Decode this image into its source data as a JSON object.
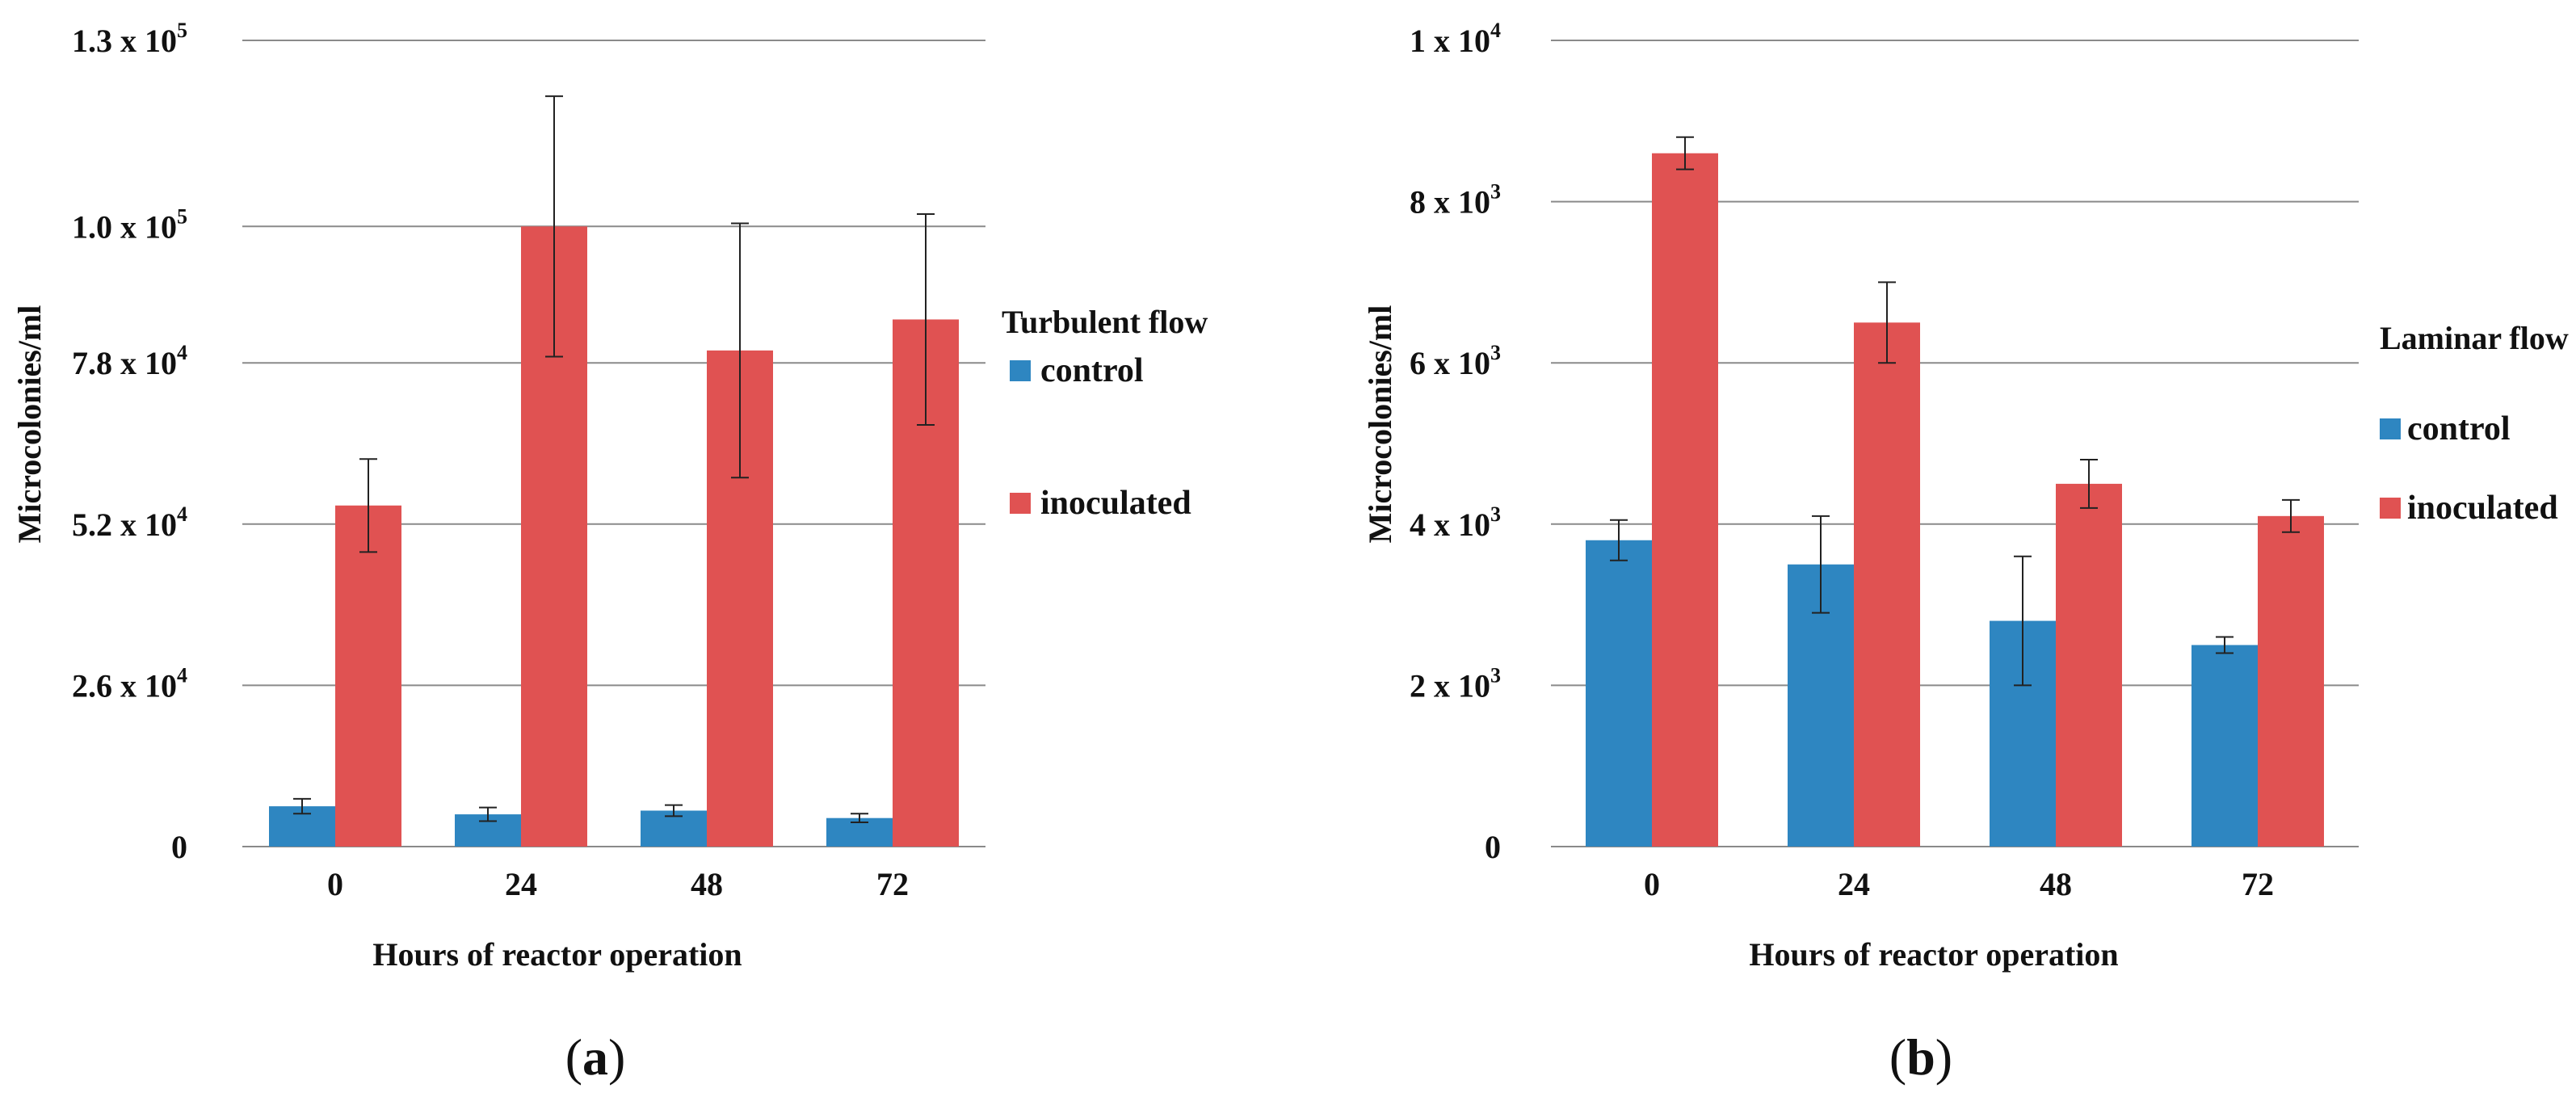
{
  "figure": {
    "panels": [
      {
        "id": "a",
        "panel_label": "a",
        "legend_title": "Turbulent flow",
        "xlabel": "Hours of reactor operation",
        "ylabel": "Microcolonies/ml",
        "y_ticks": [
          {
            "value": 0,
            "mantissa": "0",
            "exponent": ""
          },
          {
            "value": 26000,
            "mantissa": "2.6 x 10",
            "exponent": "4"
          },
          {
            "value": 52000,
            "mantissa": "5.2 x 10",
            "exponent": "4"
          },
          {
            "value": 78000,
            "mantissa": "7.8 x 10",
            "exponent": "4"
          },
          {
            "value": 100000,
            "mantissa": "1.0 x 10",
            "exponent": "5"
          },
          {
            "value": 130000,
            "mantissa": "1.3 x 10",
            "exponent": "5"
          }
        ]
      },
      {
        "id": "b",
        "panel_label": "b",
        "legend_title": "Laminar flow",
        "xlabel": "Hours of reactor operation",
        "ylabel": "Microcolonies/ml",
        "y_ticks": [
          {
            "value": 0,
            "mantissa": "0",
            "exponent": ""
          },
          {
            "value": 2000,
            "mantissa": "2 x 10",
            "exponent": "3"
          },
          {
            "value": 4000,
            "mantissa": "4 x 10",
            "exponent": "3"
          },
          {
            "value": 6000,
            "mantissa": "6 x 10",
            "exponent": "3"
          },
          {
            "value": 8000,
            "mantissa": "8 x 10",
            "exponent": "3"
          },
          {
            "value": 10000,
            "mantissa": "1 x 10",
            "exponent": "4"
          }
        ]
      }
    ]
  },
  "chart_data": [
    {
      "type": "bar",
      "title": "Turbulent flow",
      "xlabel": "Hours of reactor operation",
      "ylabel": "Microcolonies/ml",
      "ylim": [
        0,
        130000
      ],
      "grid": true,
      "legend_position": "right",
      "categories": [
        "0",
        "24",
        "48",
        "72"
      ],
      "series": [
        {
          "name": "control",
          "color": "#2E86C1",
          "values": [
            6500,
            5200,
            5800,
            4600
          ],
          "errors": [
            1200,
            1100,
            900,
            700
          ]
        },
        {
          "name": "inoculated",
          "color": "#E05252",
          "values": [
            55000,
            100000,
            80000,
            85000
          ],
          "errors": [
            7500,
            21000,
            20500,
            17000
          ]
        }
      ]
    },
    {
      "type": "bar",
      "title": "Laminar flow",
      "xlabel": "Hours of reactor operation",
      "ylabel": "Microcolonies/ml",
      "ylim": [
        0,
        10000
      ],
      "grid": true,
      "legend_position": "right",
      "categories": [
        "0",
        "24",
        "48",
        "72"
      ],
      "series": [
        {
          "name": "control",
          "color": "#2E86C1",
          "values": [
            3800,
            3500,
            2800,
            2500
          ],
          "errors": [
            250,
            600,
            800,
            100
          ]
        },
        {
          "name": "inoculated",
          "color": "#E05252",
          "values": [
            8600,
            6500,
            4500,
            4100
          ],
          "errors": [
            200,
            500,
            300,
            200
          ]
        }
      ]
    }
  ]
}
